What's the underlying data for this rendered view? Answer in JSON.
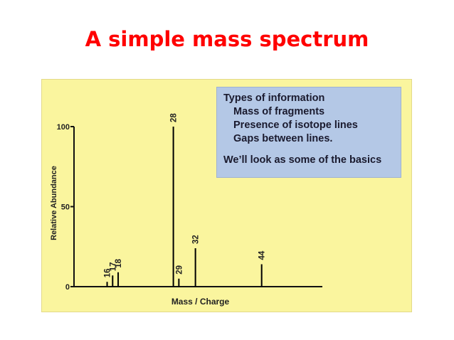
{
  "slide": {
    "title": "A simple mass spectrum"
  },
  "info_box": {
    "heading": "Types of information",
    "items": [
      "Mass of fragments",
      "Presence of isotope lines",
      "Gaps between lines."
    ],
    "note": "We’ll look as some of the basics"
  },
  "colors": {
    "title": "#ff0000",
    "panel": "#faf59e",
    "info_box": "#b4c8e6"
  },
  "chart_data": {
    "type": "bar",
    "xlabel": "Mass / Charge",
    "ylabel": "Relative Abundance",
    "ylim": [
      0,
      100
    ],
    "yticks": [
      0,
      50,
      100
    ],
    "xlim": [
      10,
      55
    ],
    "peaks": [
      {
        "label": "16",
        "x": 16,
        "y": 3
      },
      {
        "label": "17",
        "x": 17,
        "y": 7
      },
      {
        "label": "18",
        "x": 18,
        "y": 9
      },
      {
        "label": "28",
        "x": 28,
        "y": 100
      },
      {
        "label": "29",
        "x": 29,
        "y": 5
      },
      {
        "label": "32",
        "x": 32,
        "y": 24
      },
      {
        "label": "44",
        "x": 44,
        "y": 14
      }
    ],
    "grid": false
  }
}
